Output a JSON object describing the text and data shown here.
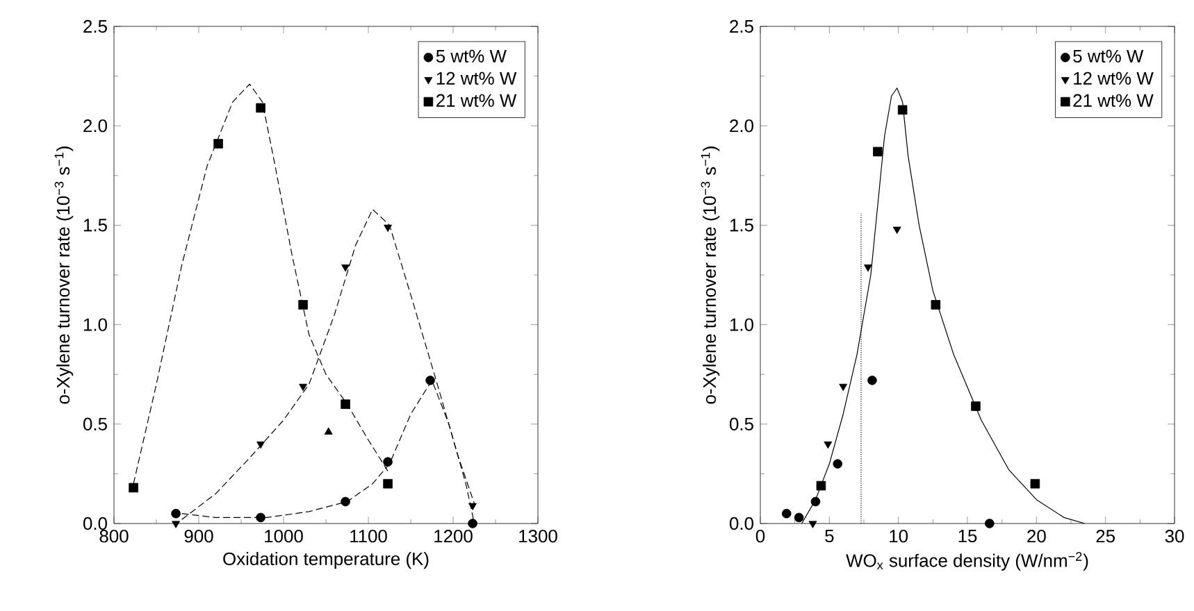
{
  "chart_data": [
    {
      "type": "scatter",
      "xlabel": "Oxidation temperature (K)",
      "ylabel": "o-Xylene turnover rate (10$^{−3}$ s$^{−1}$)",
      "xlim": [
        800,
        1300
      ],
      "ylim": [
        0,
        2.5
      ],
      "xticks": [
        800,
        900,
        1000,
        1100,
        1200,
        1300
      ],
      "yticks": [
        {
          "value": 0,
          "label": "0.0"
        },
        0.5,
        {
          "value": 1,
          "label": "1.0"
        },
        1.5,
        {
          "value": 2,
          "label": "2.0"
        },
        2.5
      ],
      "legend": "top right",
      "series": [
        {
          "name": "5 wt% W",
          "color": "#000000",
          "marker": "circle",
          "x": [
            873,
            973,
            1073,
            1123,
            1173,
            1223
          ],
          "values": [
            0.05,
            0.03,
            0.11,
            0.31,
            0.72,
            0.0
          ]
        },
        {
          "name": "12 wt% W",
          "color": "#000000",
          "marker": "triangle-down",
          "x": [
            873,
            973,
            1023,
            1073,
            1123,
            1223
          ],
          "values": [
            0.0,
            0.4,
            0.69,
            1.29,
            1.49,
            0.09
          ]
        },
        {
          "name": "21 wt% W",
          "color": "#000000",
          "marker": "square",
          "x": [
            823,
            923,
            973,
            1023,
            1073,
            1123
          ],
          "values": [
            0.18,
            1.91,
            2.09,
            1.1,
            0.6,
            0.2
          ]
        },
        {
          "color": "#000000",
          "marker": "triangle",
          "x": [
            1053
          ],
          "values": [
            0.46
          ]
        },
        {
          "type": "line",
          "color": "#000000",
          "line_style": "dashed",
          "marker": "none",
          "x": [
            823,
            850,
            880,
            910,
            940,
            960,
            975,
            990,
            1010,
            1030,
            1050,
            1075,
            1100,
            1125
          ],
          "values": [
            0.2,
            0.7,
            1.3,
            1.8,
            2.12,
            2.21,
            2.12,
            1.8,
            1.35,
            0.95,
            0.75,
            0.6,
            0.42,
            0.25
          ]
        },
        {
          "type": "line",
          "color": "#000000",
          "line_style": "dashed",
          "marker": "none",
          "x": [
            880,
            920,
            960,
            1000,
            1030,
            1060,
            1085,
            1105,
            1125,
            1150,
            1180,
            1205,
            1225
          ],
          "values": [
            0.02,
            0.15,
            0.33,
            0.52,
            0.7,
            1.05,
            1.4,
            1.58,
            1.5,
            1.15,
            0.72,
            0.35,
            0.1
          ]
        },
        {
          "type": "line",
          "color": "#000000",
          "line_style": "dashed",
          "marker": "none",
          "x": [
            880,
            920,
            980,
            1030,
            1075,
            1105,
            1125,
            1150,
            1175,
            1195,
            1215,
            1225
          ],
          "values": [
            0.05,
            0.03,
            0.03,
            0.06,
            0.11,
            0.2,
            0.3,
            0.55,
            0.72,
            0.5,
            0.2,
            0.0
          ]
        }
      ]
    },
    {
      "type": "scatter",
      "xlabel": "WO$_{x}$ surface density (W/nm$^{−2}$)",
      "ylabel": "o-Xylene turnover rate (10$^{−3}$ s$^{−1}$)",
      "xlim": [
        0,
        30
      ],
      "ylim": [
        0,
        2.5
      ],
      "xticks": [
        0,
        5,
        10,
        15,
        20,
        25,
        30
      ],
      "yticks": [
        {
          "value": 0,
          "label": "0.0"
        },
        0.5,
        {
          "value": 1,
          "label": "1.0"
        },
        1.5,
        {
          "value": 2,
          "label": "2.0"
        },
        2.5
      ],
      "legend": "top right",
      "series": [
        {
          "name": "5 wt% W",
          "color": "#000000",
          "marker": "circle",
          "x": [
            1.9,
            2.8,
            4.0,
            5.6,
            8.1,
            16.6
          ],
          "values": [
            0.05,
            0.03,
            0.11,
            0.3,
            0.72,
            0.0
          ]
        },
        {
          "name": "12 wt% W",
          "color": "#000000",
          "marker": "triangle-down",
          "x": [
            3.8,
            4.9,
            6.0,
            7.8,
            9.9
          ],
          "values": [
            0.0,
            0.4,
            0.69,
            1.29,
            1.48
          ]
        },
        {
          "name": "21 wt% W",
          "color": "#000000",
          "marker": "square",
          "x": [
            4.4,
            8.5,
            10.3,
            12.7,
            15.6,
            19.9
          ],
          "values": [
            0.19,
            1.87,
            2.08,
            1.1,
            0.59,
            0.2
          ]
        },
        {
          "type": "line",
          "color": "#000000",
          "line_style": "solid",
          "marker": "none",
          "x": [
            3,
            4,
            5,
            6,
            7,
            8,
            8.5,
            9,
            9.5,
            9.9,
            10.3,
            10.7,
            11.5,
            12.5,
            14,
            16,
            18,
            20,
            22,
            23.5
          ],
          "values": [
            0,
            0.12,
            0.3,
            0.55,
            0.85,
            1.25,
            1.6,
            1.95,
            2.15,
            2.19,
            2.12,
            1.85,
            1.5,
            1.17,
            0.85,
            0.52,
            0.27,
            0.12,
            0.03,
            0.0
          ]
        },
        {
          "type": "line",
          "color": "#000000",
          "line_style": "dotted",
          "marker": "none",
          "x": [
            7.3,
            7.3
          ],
          "values": [
            0,
            1.56
          ]
        }
      ]
    }
  ]
}
